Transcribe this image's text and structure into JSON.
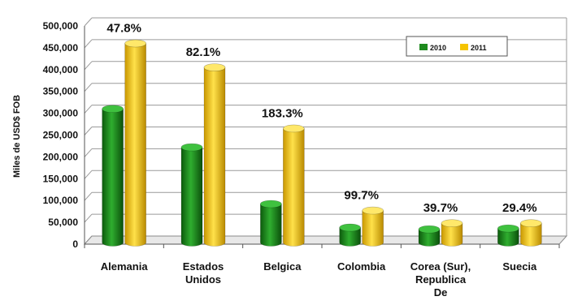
{
  "chart_data": {
    "type": "bar",
    "title": "",
    "xlabel": "",
    "ylabel": "Miles de USD$ FOB",
    "ylim": [
      0,
      500000
    ],
    "yticks": [
      "0",
      "50,000",
      "100,000",
      "150,000",
      "200,000",
      "250,000",
      "300,000",
      "350,000",
      "400,000",
      "450,000",
      "500,000"
    ],
    "categories": [
      [
        "Alemania"
      ],
      [
        "Estados",
        "Unidos"
      ],
      [
        "Belgica"
      ],
      [
        "Colombia"
      ],
      [
        "Corea (Sur),",
        "Republica",
        "De"
      ],
      [
        "Suecia"
      ]
    ],
    "series": [
      {
        "name": "2010",
        "color": "#1e8a1e",
        "values": [
          310000,
          222000,
          92000,
          38000,
          34000,
          36000
        ]
      },
      {
        "name": "2011",
        "color": "#f5c400",
        "values": [
          460000,
          405000,
          265000,
          77000,
          48000,
          48000
        ]
      }
    ],
    "annotations": [
      "47.8%",
      "82.1%",
      "183.3%",
      "99.7%",
      "39.7%",
      "29.4%"
    ],
    "grid": true,
    "legend_position": "top-right",
    "style": "3d-cylinder"
  }
}
